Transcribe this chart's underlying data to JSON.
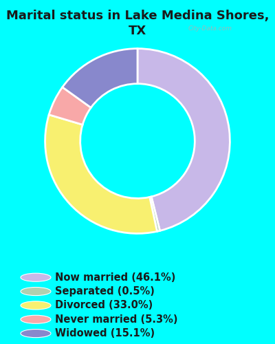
{
  "title": "Marital status in Lake Medina Shores,\nTX",
  "slices": [
    46.1,
    0.5,
    33.0,
    5.3,
    15.1
  ],
  "labels": [
    "Now married (46.1%)",
    "Separated (0.5%)",
    "Divorced (33.0%)",
    "Never married (5.3%)",
    "Widowed (15.1%)"
  ],
  "colors": [
    "#c8b8e8",
    "#b0d0b0",
    "#f8f070",
    "#f8a8a8",
    "#8888cc"
  ],
  "bg_color": "#00ffff",
  "chart_bg_color": "#d8efe0",
  "title_fontsize": 13,
  "title_color": "#1a1a1a",
  "legend_fontsize": 10.5,
  "donut_width": 0.38,
  "start_angle": 90,
  "watermark": "City-Data.com"
}
